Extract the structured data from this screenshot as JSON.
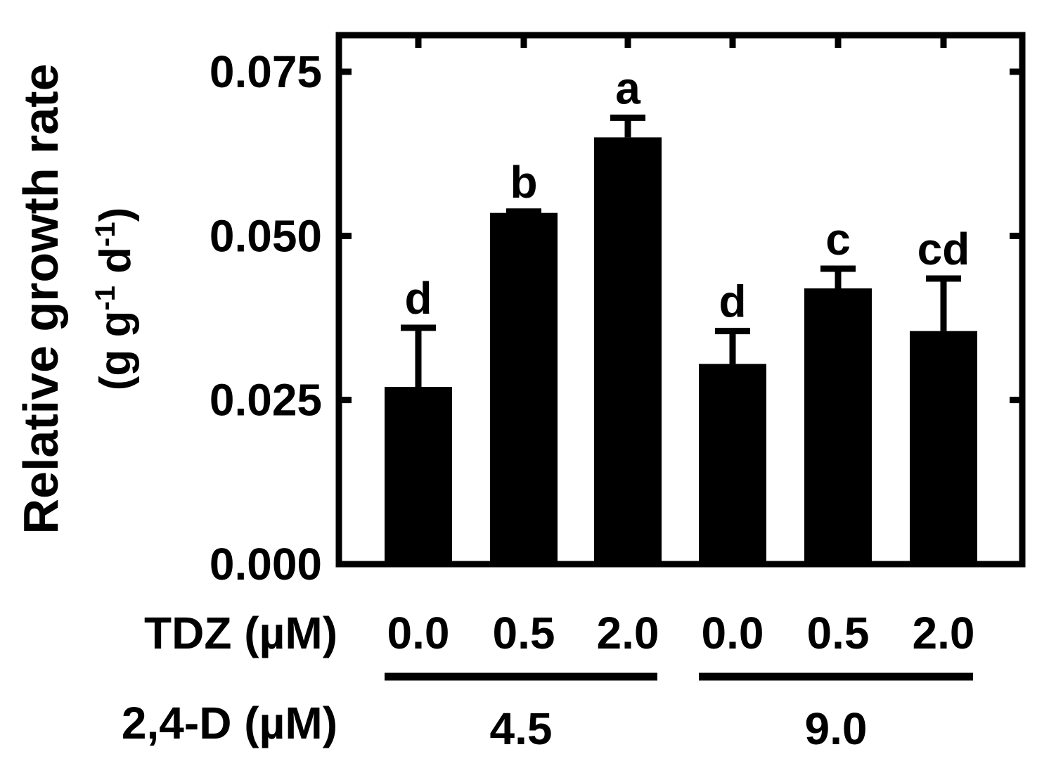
{
  "chart_data": {
    "type": "bar",
    "xlabel": "",
    "ylabel": {
      "line1": "Relative growth rate",
      "line2_prefix": "(g g",
      "sup1": "-1",
      "line2_mid": " d",
      "sup2": "-1",
      "line2_suffix": ")"
    },
    "ylim": [
      0,
      0.08
    ],
    "yticks": [
      "0.000",
      "0.025",
      "0.050",
      "0.075"
    ],
    "ytick_values": [
      0,
      0.025,
      0.05,
      0.075
    ],
    "values": [
      0.027,
      0.0535,
      0.065,
      0.0305,
      0.042,
      0.0355
    ],
    "errors": [
      0.009,
      0.0002,
      0.003,
      0.005,
      0.003,
      0.008
    ],
    "letters": [
      "d",
      "b",
      "a",
      "d",
      "c",
      "cd"
    ],
    "tdz_label": "TDZ (µM)",
    "tdz_values": [
      "0.0",
      "0.5",
      "2.0",
      "0.0",
      "0.5",
      "2.0"
    ],
    "d24_label": "2,4-D (µM)",
    "groups": [
      {
        "label": "4.5",
        "bars": [
          0,
          1,
          2
        ]
      },
      {
        "label": "9.0",
        "bars": [
          3,
          4,
          5
        ]
      }
    ],
    "bar_color": "#000000"
  }
}
